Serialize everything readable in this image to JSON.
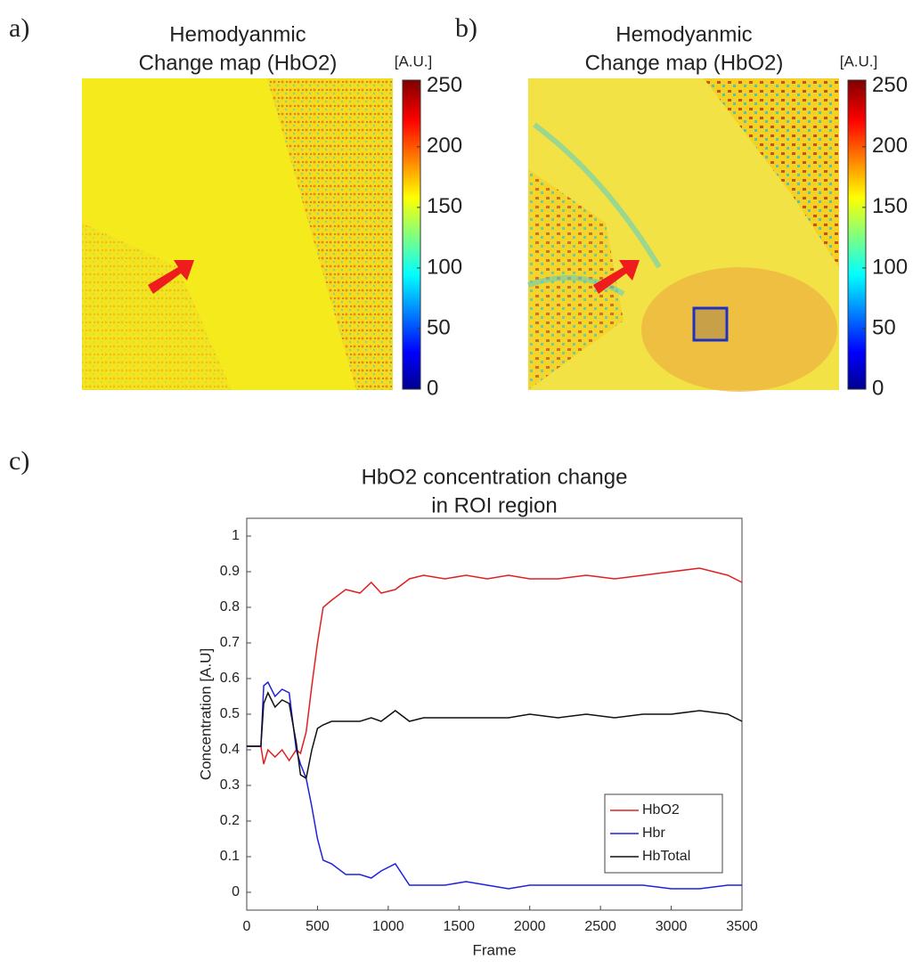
{
  "chart_data": [
    {
      "type": "heatmap",
      "panel_label": "a)",
      "title": [
        "Hemodyanmic",
        "Change map (HbO2)"
      ],
      "colorbar_label": "[A.U.]",
      "clim": [
        0,
        255
      ],
      "cticks": [
        0,
        50,
        100,
        150,
        200,
        250
      ]
    },
    {
      "type": "heatmap",
      "panel_label": "b)",
      "title": [
        "Hemodyanmic",
        "Change map (HbO2)"
      ],
      "colorbar_label": "[A.U.]",
      "clim": [
        0,
        255
      ],
      "cticks": [
        0,
        50,
        100,
        150,
        200,
        250
      ]
    },
    {
      "type": "line",
      "panel_label": "c)",
      "title": [
        "HbO2 concentration change",
        "in ROI region"
      ],
      "xlabel": "Frame",
      "ylabel": "Concentration [A.U]",
      "xlim": [
        0,
        3500
      ],
      "ylim": [
        -0.05,
        1.05
      ],
      "xticks": [
        0,
        500,
        1000,
        1500,
        2000,
        2500,
        3000,
        3500
      ],
      "yticks": [
        0,
        0.1,
        0.2,
        0.3,
        0.4,
        0.5,
        0.6,
        0.7,
        0.8,
        0.9,
        1
      ],
      "legend": "lower right",
      "x": [
        0,
        100,
        120,
        150,
        200,
        250,
        300,
        350,
        380,
        420,
        460,
        500,
        540,
        600,
        700,
        800,
        880,
        950,
        1050,
        1150,
        1250,
        1400,
        1550,
        1700,
        1850,
        2000,
        2200,
        2400,
        2600,
        2800,
        3000,
        3200,
        3400,
        3500
      ],
      "series": [
        {
          "name": "HbO2",
          "color": "#e02020",
          "values": [
            0.41,
            0.41,
            0.36,
            0.4,
            0.38,
            0.4,
            0.37,
            0.4,
            0.39,
            0.45,
            0.58,
            0.7,
            0.8,
            0.82,
            0.85,
            0.84,
            0.87,
            0.84,
            0.85,
            0.88,
            0.89,
            0.88,
            0.89,
            0.88,
            0.89,
            0.88,
            0.88,
            0.89,
            0.88,
            0.89,
            0.9,
            0.91,
            0.89,
            0.87
          ]
        },
        {
          "name": "Hbr",
          "color": "#2020e0",
          "values": [
            0.41,
            0.41,
            0.58,
            0.59,
            0.55,
            0.57,
            0.56,
            0.4,
            0.36,
            0.32,
            0.24,
            0.15,
            0.09,
            0.08,
            0.05,
            0.05,
            0.04,
            0.06,
            0.08,
            0.02,
            0.02,
            0.02,
            0.03,
            0.02,
            0.01,
            0.02,
            0.02,
            0.02,
            0.02,
            0.02,
            0.01,
            0.01,
            0.02,
            0.02
          ]
        },
        {
          "name": "HbTotal",
          "color": "#111111",
          "values": [
            0.41,
            0.41,
            0.53,
            0.56,
            0.52,
            0.54,
            0.53,
            0.42,
            0.33,
            0.32,
            0.4,
            0.46,
            0.47,
            0.48,
            0.48,
            0.48,
            0.49,
            0.48,
            0.51,
            0.48,
            0.49,
            0.49,
            0.49,
            0.49,
            0.49,
            0.5,
            0.49,
            0.5,
            0.49,
            0.5,
            0.5,
            0.51,
            0.5,
            0.48
          ]
        }
      ]
    }
  ]
}
